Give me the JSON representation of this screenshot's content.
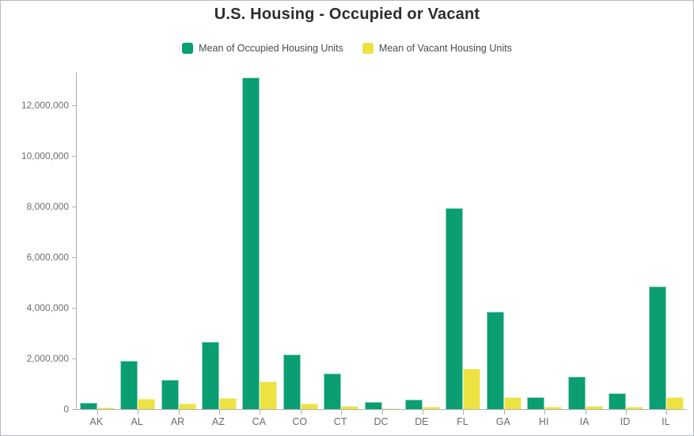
{
  "colors": {
    "occupied_green": "#0a9e72",
    "vacant_yellow": "#ece343",
    "axis_line": "#b0b0b0",
    "tick_text": "#6e6e6e",
    "title_text": "#2d2d2d",
    "legend_text": "#4a4a4a",
    "frame_border": "#b6bbc0"
  },
  "chart_data": {
    "type": "bar",
    "title": "U.S. Housing - Occupied or Vacant",
    "xlabel": "",
    "ylabel": "",
    "categories": [
      "AK",
      "AL",
      "AR",
      "AZ",
      "CA",
      "CO",
      "CT",
      "DC",
      "DE",
      "FL",
      "GA",
      "HI",
      "IA",
      "ID",
      "IL"
    ],
    "series": [
      {
        "name": "Mean of Occupied Housing Units",
        "color": "#0a9e72",
        "values": [
          250000,
          1900000,
          1150000,
          2650000,
          13100000,
          2150000,
          1400000,
          280000,
          370000,
          7950000,
          3830000,
          460000,
          1270000,
          640000,
          4850000
        ]
      },
      {
        "name": "Mean of Vacant Housing Units",
        "color": "#ece343",
        "values": [
          70000,
          400000,
          230000,
          430000,
          1100000,
          210000,
          130000,
          40000,
          80000,
          1600000,
          470000,
          90000,
          140000,
          90000,
          480000
        ]
      }
    ],
    "ylim": [
      0,
      13312500
    ],
    "yticks": [
      0,
      2000000,
      4000000,
      6000000,
      8000000,
      10000000,
      12000000
    ],
    "ytick_labels": [
      "0",
      "2,000,000",
      "4,000,000",
      "6,000,000",
      "8,000,000",
      "10,000,000",
      "12,000,000"
    ],
    "grid": false,
    "legend_position": "top"
  }
}
